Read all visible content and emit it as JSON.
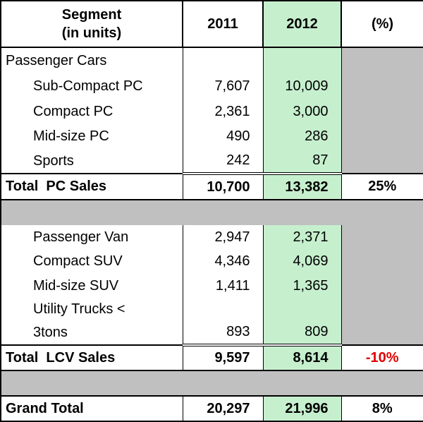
{
  "header": {
    "segment": [
      "Segment",
      "(in units)"
    ],
    "y2011": "2011",
    "y2012": "2012",
    "pct": "(%)"
  },
  "rows": [
    {
      "label": "Passenger Cars"
    },
    {
      "label": "Sub-Compact PC",
      "y2011": "7,607",
      "y2012": "10,009"
    },
    {
      "label": "Compact PC",
      "y2011": "2,361",
      "y2012": "3,000"
    },
    {
      "label": "Mid-size PC",
      "y2011": "490",
      "y2012": "286"
    },
    {
      "label": "Sports",
      "y2011": "242",
      "y2012": "87"
    },
    {
      "label": "Total  PC Sales",
      "y2011": "10,700",
      "y2012": "13,382",
      "pct": "25%"
    },
    {
      "label": "Passenger Van",
      "y2011": "2,947",
      "y2012": "2,371"
    },
    {
      "label": "Compact SUV",
      "y2011": "4,346",
      "y2012": "4,069"
    },
    {
      "label": "Mid-size SUV",
      "y2011": "1,411",
      "y2012": "1,365"
    },
    {
      "label": "Utility Trucks <"
    },
    {
      "label": "3tons",
      "y2011": "893",
      "y2012": "809"
    },
    {
      "label": "Total  LCV Sales",
      "y2011": "9,597",
      "y2012": "8,614",
      "pct": "-10%"
    },
    {
      "label": "Grand Total",
      "y2011": "20,297",
      "y2012": "21,996",
      "pct": "8%"
    }
  ]
}
